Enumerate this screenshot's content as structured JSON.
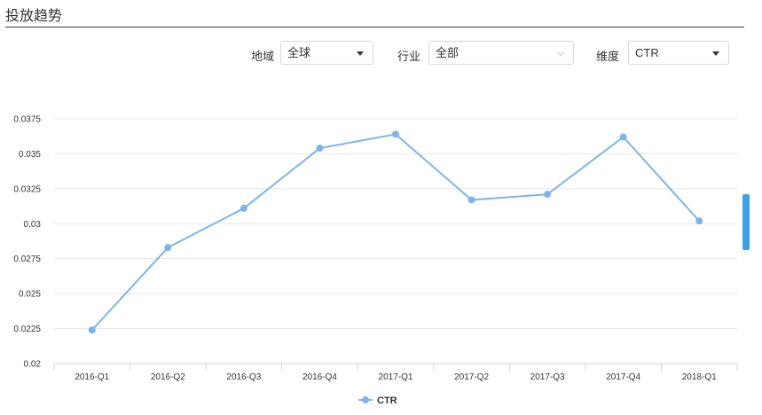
{
  "header": {
    "title": "投放趋势"
  },
  "filters": {
    "region": {
      "label": "地域",
      "value": "全球"
    },
    "industry": {
      "label": "行业",
      "value": "全部"
    },
    "dimension": {
      "label": "维度",
      "value": "CTR"
    }
  },
  "colors": {
    "series": "#7cb5ec",
    "grid": "#e6e6e6",
    "accent": "#3fa0e8"
  },
  "chart_data": {
    "type": "line",
    "categories": [
      "2016-Q1",
      "2016-Q2",
      "2016-Q3",
      "2016-Q4",
      "2017-Q1",
      "2017-Q2",
      "2017-Q3",
      "2017-Q4",
      "2018-Q1"
    ],
    "series": [
      {
        "name": "CTR",
        "values": [
          0.0224,
          0.0283,
          0.0311,
          0.0354,
          0.0364,
          0.0317,
          0.0321,
          0.0362,
          0.0302
        ]
      }
    ],
    "yticks": [
      "0.02",
      "0.0225",
      "0.025",
      "0.0275",
      "0.03",
      "0.0325",
      "0.035",
      "0.0375"
    ],
    "ylim": [
      0.02,
      0.0375
    ],
    "legend": "bottom-center",
    "grid": true
  }
}
